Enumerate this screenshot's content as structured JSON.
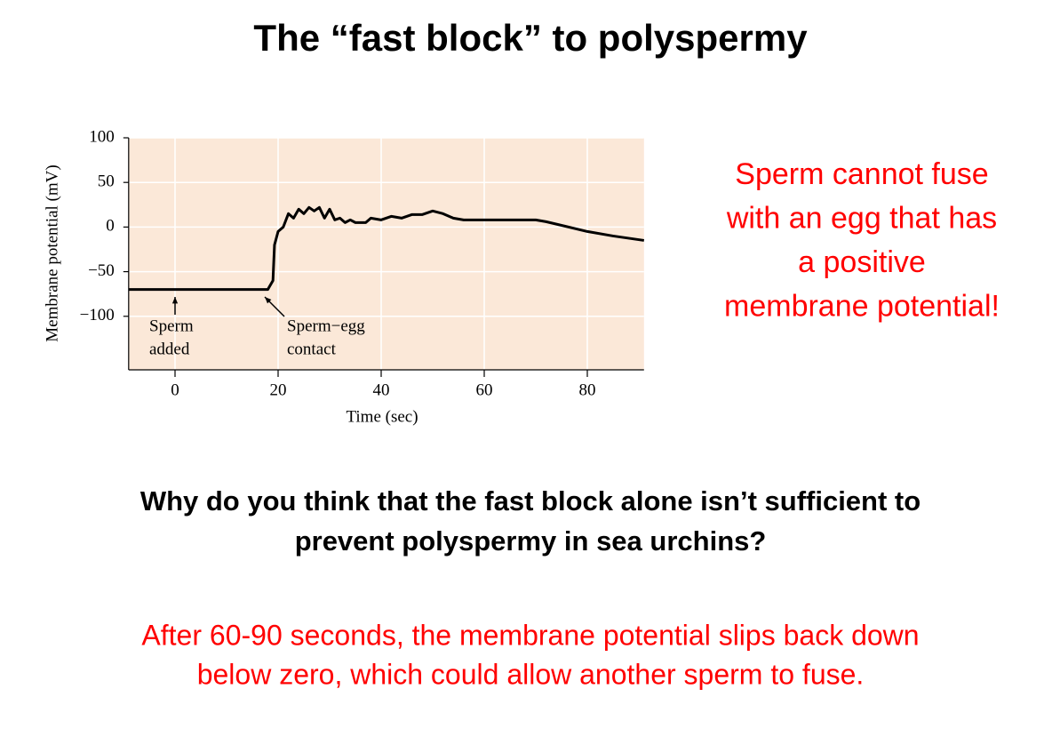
{
  "slide_title": "The “fast block” to polyspermy",
  "chart_data": {
    "type": "line",
    "y_axis_label": "Membrane potential (mV)",
    "x_axis_label": "Time (sec)",
    "x": [
      -9,
      18,
      19,
      19.3,
      20,
      21,
      22,
      23,
      24,
      25,
      26,
      27,
      28,
      29,
      30,
      31,
      32,
      33,
      34,
      35,
      37,
      38,
      40,
      42,
      44,
      46,
      48,
      50,
      52,
      54,
      56,
      70,
      72,
      80,
      85,
      91
    ],
    "values": [
      -70,
      -70,
      -60,
      -20,
      -5,
      0,
      15,
      10,
      20,
      15,
      22,
      18,
      22,
      10,
      20,
      8,
      10,
      5,
      8,
      5,
      5,
      10,
      8,
      12,
      10,
      14,
      14,
      18,
      15,
      10,
      8,
      8,
      6,
      -5,
      -10,
      -15
    ],
    "color": "#000000",
    "xlim": [
      -9,
      91
    ],
    "xticks": [
      0,
      20,
      40,
      60,
      80
    ],
    "ylim": [
      -160,
      100
    ],
    "yticks": [
      100,
      50,
      0,
      {
        "value": -50,
        "label": "−50"
      },
      {
        "value": -100,
        "label": "−100"
      }
    ],
    "grid": true,
    "annotations": [
      {
        "lines": [
          "Sperm",
          "added"
        ]
      },
      {
        "lines": [
          "Sperm−egg",
          "contact"
        ]
      }
    ]
  },
  "side_note": {
    "lines": [
      "Sperm cannot fuse",
      "with an egg that has",
      "a positive",
      "membrane potential!"
    ]
  },
  "question": {
    "lines": [
      "Why do you think that the fast block alone isn’t sufficient to",
      "prevent polyspermy in sea urchins?"
    ]
  },
  "answer": {
    "lines": [
      "After 60-90 seconds, the membrane potential slips back down",
      "below zero, which could allow another sperm to fuse."
    ]
  }
}
